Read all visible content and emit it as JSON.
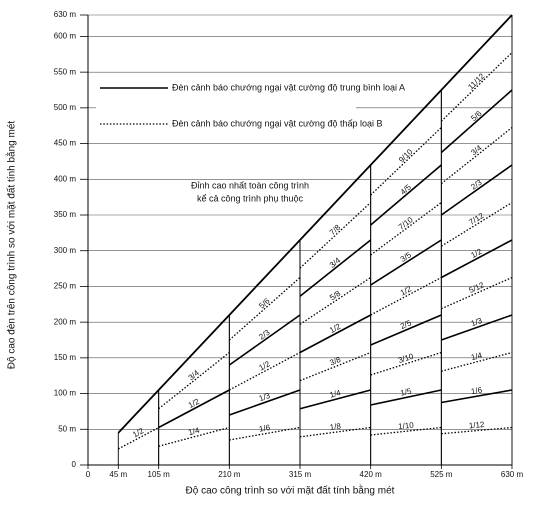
{
  "chart_data": {
    "type": "line",
    "xlabel": "Độ cao công trình so với mặt đất tính bằng mét",
    "ylabel": "Độ cao đèn trên công trình so với mặt đất tính bằng mét",
    "xlim": [
      0,
      630
    ],
    "ylim": [
      0,
      630
    ],
    "xticks": [
      0,
      {
        "value": 45,
        "label": "45 m"
      },
      {
        "value": 105,
        "label": "105 m"
      },
      {
        "value": 210,
        "label": "210 m"
      },
      {
        "value": 315,
        "label": "315 m"
      },
      {
        "value": 420,
        "label": "420 m"
      },
      {
        "value": 525,
        "label": "525 m"
      },
      {
        "value": 630,
        "label": "630 m"
      }
    ],
    "yticks": [
      0,
      {
        "value": 50,
        "label": "50 m"
      },
      {
        "value": 100,
        "label": "100 m"
      },
      {
        "value": 150,
        "label": "150 m"
      },
      {
        "value": 200,
        "label": "200 m"
      },
      {
        "value": 250,
        "label": "250 m"
      },
      {
        "value": 300,
        "label": "300 m"
      },
      {
        "value": 350,
        "label": "350 m"
      },
      {
        "value": 400,
        "label": "400 m"
      },
      {
        "value": 450,
        "label": "450 m"
      },
      {
        "value": 500,
        "label": "500 m"
      },
      {
        "value": 550,
        "label": "550 m"
      },
      {
        "value": 600,
        "label": "600 m"
      },
      {
        "value": 630,
        "label": "630 m"
      }
    ],
    "grid": true,
    "legend": [
      {
        "label": "Đèn cảnh báo chướng ngại vật cường độ trung bình loại A",
        "style": "solid"
      },
      {
        "label": "Đèn cảnh báo chướng ngại vật cường độ thấp  loại B",
        "style": "dotted"
      }
    ],
    "annotation": [
      "Đỉnh cao nhất toàn công trình",
      "kể cả công trình phụ thuộc"
    ],
    "envelope": {
      "x": [
        45,
        630
      ],
      "values": [
        45,
        630
      ]
    },
    "segments": [
      {
        "x": [
          45,
          105
        ],
        "lines": [
          {
            "label": "1/2",
            "style": "dotted",
            "values": [
              22.5,
              52.5
            ]
          }
        ]
      },
      {
        "x": [
          105,
          210
        ],
        "lines": [
          {
            "label": "1/4",
            "style": "dotted",
            "values": [
              26.3,
              52.5
            ]
          },
          {
            "label": "1/2",
            "style": "solid",
            "values": [
              52.5,
              105
            ]
          },
          {
            "label": "3/4",
            "style": "dotted",
            "values": [
              78.8,
              157.5
            ]
          }
        ]
      },
      {
        "x": [
          210,
          315
        ],
        "lines": [
          {
            "label": "1/6",
            "style": "dotted",
            "values": [
              35,
              52.5
            ]
          },
          {
            "label": "1/3",
            "style": "solid",
            "values": [
              70,
              105
            ]
          },
          {
            "label": "1/2",
            "style": "dotted",
            "values": [
              105,
              157.5
            ]
          },
          {
            "label": "2/3",
            "style": "solid",
            "values": [
              140,
              210
            ]
          },
          {
            "label": "5/6",
            "style": "dotted",
            "values": [
              175,
              262.5
            ]
          }
        ]
      },
      {
        "x": [
          315,
          420
        ],
        "lines": [
          {
            "label": "1/8",
            "style": "dotted",
            "values": [
              39.4,
              52.5
            ]
          },
          {
            "label": "1/4",
            "style": "solid",
            "values": [
              78.8,
              105
            ]
          },
          {
            "label": "3/8",
            "style": "dotted",
            "values": [
              118.1,
              157.5
            ]
          },
          {
            "label": "1/2",
            "style": "solid",
            "values": [
              157.5,
              210
            ]
          },
          {
            "label": "5/8",
            "style": "dotted",
            "values": [
              196.9,
              262.5
            ]
          },
          {
            "label": "3/4",
            "style": "solid",
            "values": [
              236.3,
              315
            ]
          },
          {
            "label": "7/8",
            "style": "dotted",
            "values": [
              275.6,
              367.5
            ]
          }
        ]
      },
      {
        "x": [
          420,
          525
        ],
        "lines": [
          {
            "label": "1/10",
            "style": "dotted",
            "values": [
              42,
              52.5
            ]
          },
          {
            "label": "1/5",
            "style": "solid",
            "values": [
              84,
              105
            ]
          },
          {
            "label": "3/10",
            "style": "dotted",
            "values": [
              126,
              157.5
            ]
          },
          {
            "label": "2/5",
            "style": "solid",
            "values": [
              168,
              210
            ]
          },
          {
            "label": "1/2",
            "style": "dotted",
            "values": [
              210,
              262.5
            ]
          },
          {
            "label": "3/5",
            "style": "solid",
            "values": [
              252,
              315
            ]
          },
          {
            "label": "7/10",
            "style": "dotted",
            "values": [
              294,
              367.5
            ]
          },
          {
            "label": "4/5",
            "style": "solid",
            "values": [
              336,
              420
            ]
          },
          {
            "label": "9/10",
            "style": "dotted",
            "values": [
              378,
              472.5
            ]
          }
        ]
      },
      {
        "x": [
          525,
          630
        ],
        "lines": [
          {
            "label": "1/12",
            "style": "dotted",
            "values": [
              43.8,
              52.5
            ]
          },
          {
            "label": "1/6",
            "style": "solid",
            "values": [
              87.5,
              105
            ]
          },
          {
            "label": "1/4",
            "style": "dotted",
            "values": [
              131.3,
              157.5
            ]
          },
          {
            "label": "1/3",
            "style": "solid",
            "values": [
              175,
              210
            ]
          },
          {
            "label": "5/12",
            "style": "dotted",
            "values": [
              218.8,
              262.5
            ]
          },
          {
            "label": "1/2",
            "style": "solid",
            "values": [
              262.5,
              315
            ]
          },
          {
            "label": "7/12",
            "style": "dotted",
            "values": [
              306.3,
              367.5
            ]
          },
          {
            "label": "2/3",
            "style": "solid",
            "values": [
              350,
              420
            ]
          },
          {
            "label": "3/4",
            "style": "dotted",
            "values": [
              393.8,
              472.5
            ]
          },
          {
            "label": "5/6",
            "style": "solid",
            "values": [
              437.5,
              525
            ]
          },
          {
            "label": "11/12",
            "style": "dotted",
            "values": [
              481.3,
              577.5
            ]
          }
        ]
      }
    ]
  }
}
